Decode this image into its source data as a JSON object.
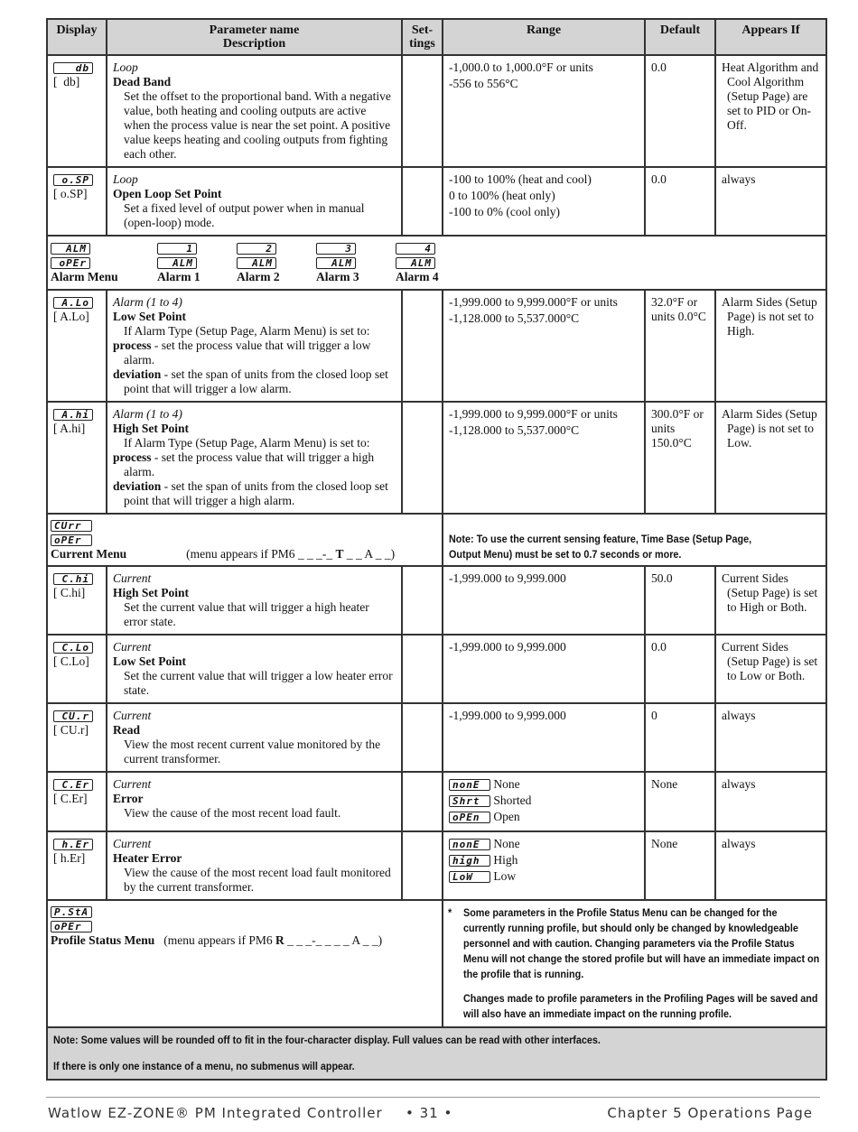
{
  "headers": {
    "display": "Display",
    "param": "Parameter name",
    "desc": "Description",
    "settings": "Set-tings",
    "range": "Range",
    "default": "Default",
    "appears": "Appears If"
  },
  "rows": [
    {
      "seg": "db",
      "code": "[  db]",
      "cat": "Loop",
      "name": "Dead Band",
      "desc": "Set the offset to the proportional band. With a negative value, both heating and cooling outputs are active when the process value is near the set point. A positive value keeps heating and cooling outputs from fighting each other.",
      "range": [
        "-1,000.0 to 1,000.0°F or units",
        "-556 to 556°C"
      ],
      "default": "0.0",
      "appears": "Heat Algorithm and Cool Algorithm (Setup Page) are set to PID or On-Off."
    },
    {
      "seg": "o.SP",
      "code": "[ o.SP]",
      "cat": "Loop",
      "name": "Open Loop Set Point",
      "desc": "Set a fixed level of output power when in manual (open-loop) mode.",
      "range": [
        "-100 to 100% (heat and cool)",
        "0 to 100% (heat only)",
        "-100 to 0% (cool only)"
      ],
      "default": "0.0",
      "appears": "always"
    },
    {
      "seg": "A.Lo",
      "code": "[ A.Lo]",
      "cat": "Alarm (1 to 4)",
      "name": "Low Set Point",
      "intro": "If Alarm Type (Setup Page, Alarm Menu) is set to:",
      "p1b": "process",
      "p1": " - set the process value that will trigger a low alarm.",
      "p2b": "deviation",
      "p2": " - set the span of units from the closed loop set point that will trigger a low alarm.",
      "range": [
        "-1,999.000 to 9,999.000°F or units",
        "-1,128.000 to 5,537.000°C"
      ],
      "default": "32.0°F or units 0.0°C",
      "appears": "Alarm Sides (Setup Page) is not set to High."
    },
    {
      "seg": "A.hi",
      "code": "[ A.hi]",
      "cat": "Alarm (1 to 4)",
      "name": "High Set Point",
      "intro": "If Alarm Type (Setup Page, Alarm Menu) is set to:",
      "p1b": "process",
      "p1": " - set the process value that will trigger a high alarm.",
      "p2b": "deviation",
      "p2": " - set the span of units from the closed loop set point that will trigger a high alarm.",
      "range": [
        "-1,999.000 to 9,999.000°F or units",
        "-1,128.000 to 5,537.000°C"
      ],
      "default": "300.0°F or units 150.0°C",
      "appears": "Alarm Sides (Setup Page) is not set to Low."
    },
    {
      "seg": "C.hi",
      "code": "[ C.hi]",
      "cat": "Current",
      "name": "High Set Point",
      "desc": "Set the current value that will trigger a high heater error state.",
      "range": [
        "-1,999.000 to 9,999.000"
      ],
      "default": "50.0",
      "appears": "Current Sides (Setup Page) is set to High or Both."
    },
    {
      "seg": "C.Lo",
      "code": "[ C.Lo]",
      "cat": "Current",
      "name": "Low Set Point",
      "desc": "Set the current value that will trigger a low heater error state.",
      "range": [
        "-1,999.000 to 9,999.000"
      ],
      "default": "0.0",
      "appears": "Current Sides (Setup Page) is set to Low or Both."
    },
    {
      "seg": "CU.r",
      "code": "[ CU.r]",
      "cat": "Current",
      "name": "Read",
      "desc": "View the most recent current value monitored by the current transformer.",
      "range": [
        "-1,999.000 to 9,999.000"
      ],
      "default": "0",
      "appears": "always"
    },
    {
      "seg": "C.Er",
      "code": "[ C.Er]",
      "cat": "Current",
      "name": "Error",
      "desc": "View the cause of the most recent load fault.",
      "options": [
        {
          "seg": "nonE",
          "label": "None"
        },
        {
          "seg": "Shrt",
          "label": "Shorted"
        },
        {
          "seg": "oPEn",
          "label": "Open"
        }
      ],
      "default": "None",
      "appears": "always"
    },
    {
      "seg": "h.Er",
      "code": "[ h.Er]",
      "cat": "Current",
      "name": "Heater Error",
      "desc": "View the cause of the most recent load fault monitored by the current transformer.",
      "options": [
        {
          "seg": "nonE",
          "label": "None"
        },
        {
          "seg": "high",
          "label": "High"
        },
        {
          "seg": "LoW",
          "label": "Low"
        }
      ],
      "default": "None",
      "appears": "always"
    }
  ],
  "alarm_menu": {
    "items": [
      {
        "top": "ALM",
        "bot": "oPEr",
        "label": "Alarm Menu"
      },
      {
        "top": "1",
        "bot": "ALM",
        "label": "Alarm 1"
      },
      {
        "top": "2",
        "bot": "ALM",
        "label": "Alarm 2"
      },
      {
        "top": "3",
        "bot": "ALM",
        "label": "Alarm 3"
      },
      {
        "top": "4",
        "bot": "ALM",
        "label": "Alarm 4"
      }
    ]
  },
  "current_menu": {
    "top": "CUrr",
    "bot": "oPEr",
    "label": "Current Menu",
    "cond_pre": "(menu appears if PM6 _ _ _-_ ",
    "cond_b": "T",
    "cond_post": " _ _ A _ _)",
    "note": "Note: To use the current sensing feature, Time Base (Setup Page, Output Menu) must be set to 0.7 seconds or more."
  },
  "profile_menu": {
    "top": "P.StA",
    "bot": "oPEr",
    "label": "Profile Status Menu",
    "cond_pre": "(menu appears if PM6 ",
    "cond_b": "R",
    "cond_post": " _ _ _-_ _ _ _ A _ _)",
    "star": "*",
    "note1": "Some parameters in the Profile Status Menu can be changed for the currently running profile, but should only be changed by knowledgeable personnel and with caution. Changing parameters via the Profile Status Menu will not change the stored profile but will have an immediate impact on the profile that is running.",
    "note2": "Changes made to profile parameters in the Profiling Pages will be saved and will also have an immediate impact on the running profile."
  },
  "bottom_note": {
    "line1": "Note: Some values will be rounded off to fit in the four-character display. Full values can be read with other interfaces.",
    "line2": "If there is only one instance of a menu, no submenus will appear."
  },
  "footer": {
    "left": "Watlow EZ-ZONE® PM Integrated Controller",
    "page": "•  31  •",
    "right": "Chapter 5 Operations Page"
  }
}
